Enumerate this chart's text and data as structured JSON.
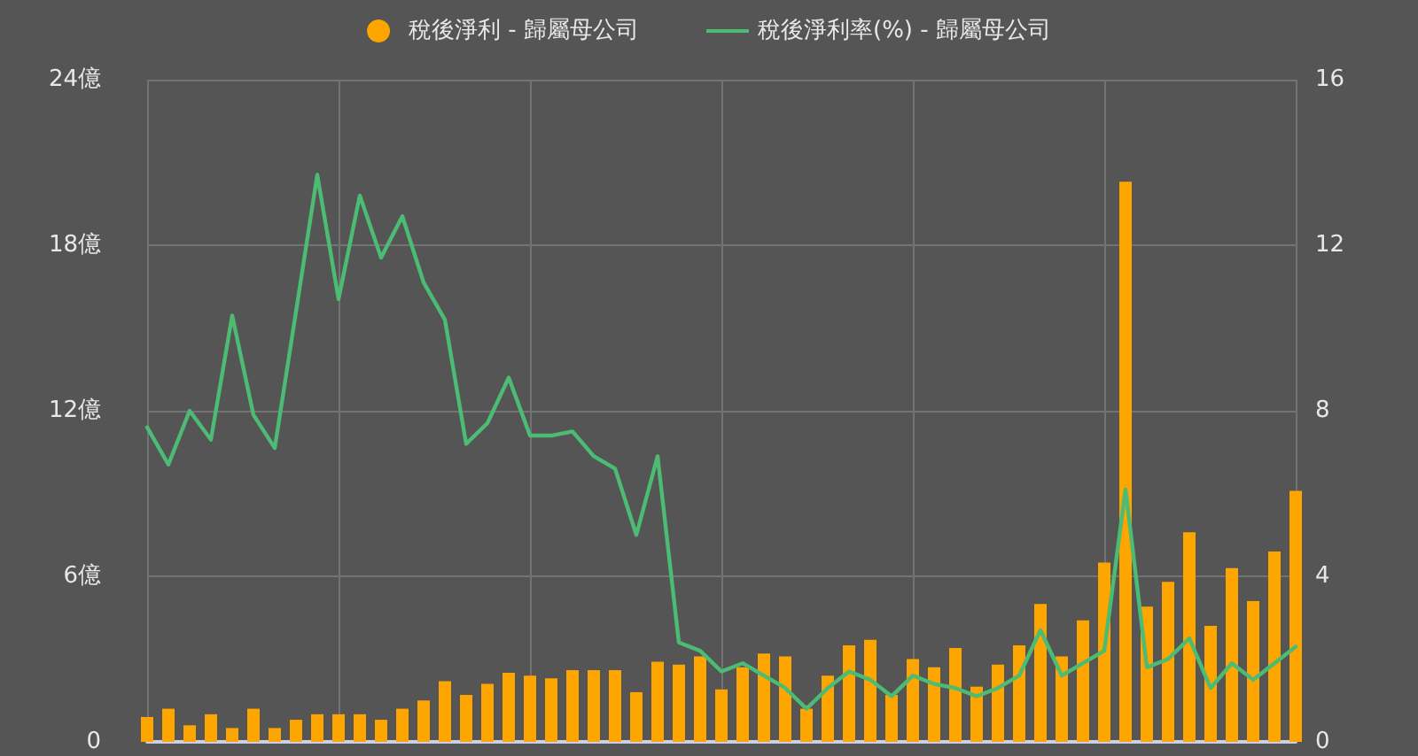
{
  "chart_data": {
    "type": "bar",
    "categories": [
      null,
      null,
      null,
      null,
      null,
      null,
      null,
      null,
      null,
      null,
      null,
      null,
      null,
      null,
      null,
      null,
      null,
      null,
      null,
      null,
      null,
      null,
      null,
      null,
      null,
      null,
      null,
      null,
      null,
      null,
      null,
      null,
      null,
      null,
      null,
      null,
      null,
      null,
      null,
      null,
      null,
      null,
      null,
      null,
      null,
      null,
      null,
      null,
      null,
      null,
      null,
      null,
      null,
      null,
      null
    ],
    "series": [
      {
        "name": "稅後淨利 - 歸屬母公司",
        "color": "#ffa500",
        "values": [
          0.9,
          1.2,
          0.6,
          1.0,
          0.5,
          1.2,
          0.5,
          0.8,
          1.0,
          1.0,
          1.0,
          0.8,
          1.2,
          1.5,
          2.2,
          1.7,
          2.1,
          2.5,
          2.4,
          2.3,
          2.6,
          2.6,
          2.6,
          1.8,
          2.9,
          2.8,
          3.1,
          1.9,
          2.7,
          3.2,
          3.1,
          1.2,
          2.4,
          3.5,
          3.7,
          1.7,
          3.0,
          2.7,
          3.4,
          2.0,
          2.8,
          3.5,
          5.0,
          3.1,
          4.4,
          6.5,
          20.3,
          4.9,
          5.8,
          7.6,
          4.2,
          6.3,
          5.1,
          6.9,
          9.1
        ]
      },
      {
        "name": "稅後淨利率(%) - 歸屬母公司",
        "type": "line",
        "axis": "y2",
        "color": "#4cbb73",
        "values": [
          7.6,
          6.7,
          8.0,
          7.3,
          10.3,
          7.9,
          7.1,
          10.4,
          13.7,
          10.7,
          13.2,
          11.7,
          12.7,
          11.1,
          10.2,
          7.2,
          7.7,
          8.8,
          7.4,
          7.4,
          7.5,
          6.9,
          6.6,
          5.0,
          6.9,
          2.4,
          2.2,
          1.7,
          1.9,
          1.6,
          1.3,
          0.8,
          1.3,
          1.7,
          1.5,
          1.1,
          1.6,
          1.4,
          1.3,
          1.1,
          1.3,
          1.6,
          2.7,
          1.6,
          1.9,
          2.2,
          6.1,
          1.8,
          2.0,
          2.5,
          1.3,
          1.9,
          1.5,
          1.9,
          2.3
        ]
      }
    ],
    "ylim": [
      0,
      24
    ],
    "yticks": [
      0,
      {
        "value": 6,
        "label": "6億"
      },
      {
        "value": 12,
        "label": "12億"
      },
      {
        "value": 18,
        "label": "18億"
      },
      {
        "value": 24,
        "label": "24億"
      }
    ],
    "y2lim": [
      0,
      16
    ],
    "y2ticks": [
      0,
      4,
      8,
      12,
      16
    ],
    "grid": true,
    "legend": "top",
    "marker": "none",
    "line_style": "solid"
  }
}
